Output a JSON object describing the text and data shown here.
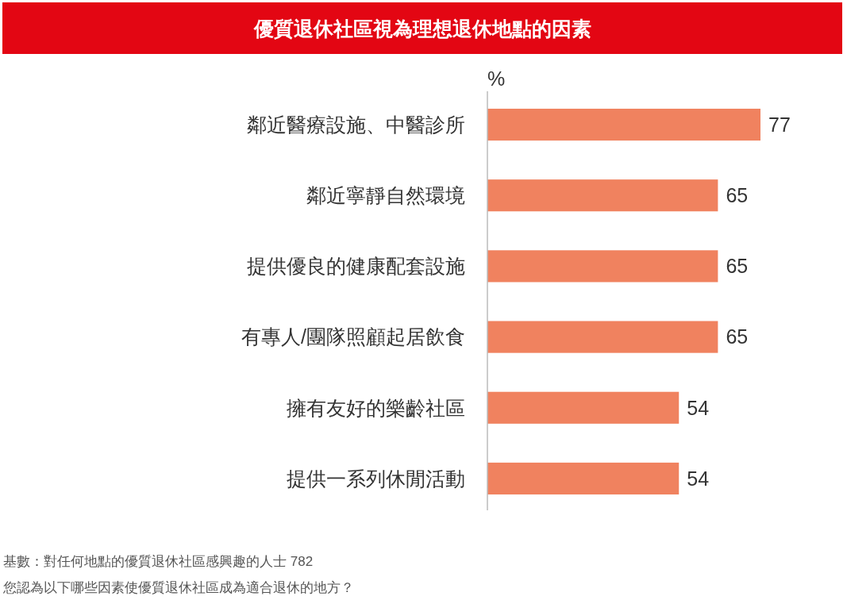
{
  "chart_data": {
    "type": "bar",
    "orientation": "horizontal",
    "title": "優質退休社區視為理想退休地點的因素",
    "xlabel": "%",
    "categories": [
      "鄰近醫療設施、中醫診所",
      "鄰近寧靜自然環境",
      "提供優良的健康配套設施",
      "有專人/團隊照顧起居飲食",
      "擁有友好的樂齡社區",
      "提供一系列休閒活動"
    ],
    "values": [
      77,
      65,
      65,
      65,
      54,
      54
    ],
    "color": "#f0825f",
    "data_labels": true,
    "annotations": [
      "基數：對任何地點的優質退休社區感興趣的人士 782",
      "您認為以下哪些因素使優質退休社區成為適合退休的地方？"
    ]
  }
}
